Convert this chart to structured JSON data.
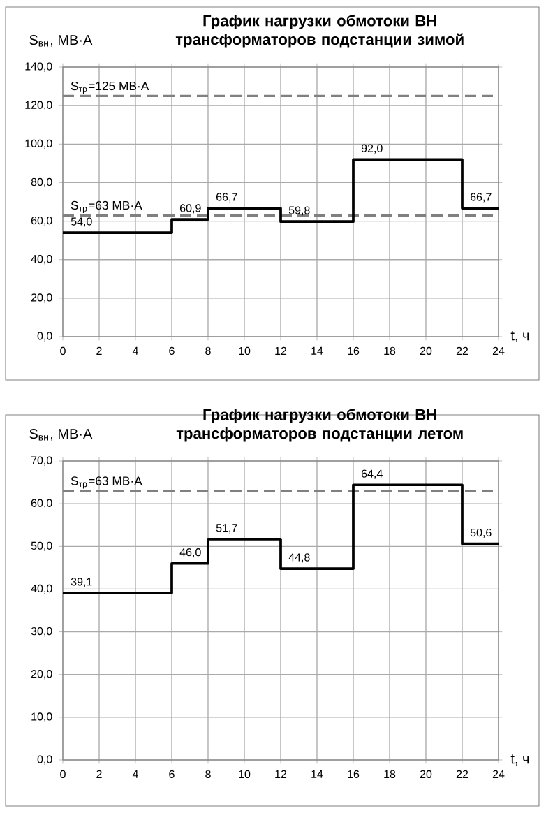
{
  "chart_data": [
    {
      "type": "step",
      "title": "График нагрузки обмотоки ВН трансформаторов подстанции зимой",
      "ylabel": "S$_{вн}$, МВ·А",
      "xlabel": "t, ч",
      "color": "#000000",
      "grid": true,
      "x": [
        0,
        6,
        8,
        12,
        16,
        22,
        24
      ],
      "values": [
        54.0,
        60.9,
        66.7,
        59.8,
        92.0,
        66.7,
        66.7
      ],
      "value_labels": [
        "54,0",
        "60,9",
        "66,7",
        "59,8",
        "92,0",
        "66,7",
        null
      ],
      "xlim": [
        0,
        24
      ],
      "xticks": [
        0,
        2,
        4,
        6,
        8,
        10,
        12,
        14,
        16,
        18,
        20,
        22,
        24
      ],
      "ylim": [
        0,
        140
      ],
      "yticks": [
        {
          "value": 0,
          "label": "0,0"
        },
        {
          "value": 20,
          "label": "20,0"
        },
        {
          "value": 40,
          "label": "40,0"
        },
        {
          "value": 60,
          "label": "60,0"
        },
        {
          "value": 80,
          "label": "80,0"
        },
        {
          "value": 100,
          "label": "100,0"
        },
        {
          "value": 120,
          "label": "120,0"
        },
        {
          "value": 140,
          "label": "140,0"
        }
      ],
      "ref_lines": [
        {
          "axis": "y",
          "value": 125,
          "label": "S$_{тр}$=125 МВ·А",
          "color": "#808080",
          "line_style": "dashed"
        },
        {
          "axis": "y",
          "value": 63,
          "label": "S$_{тр}$=63 МВ·А",
          "color": "#808080",
          "line_style": "dashed"
        }
      ]
    },
    {
      "type": "step",
      "title": "График нагрузки обмотоки ВН трансформаторов подстанции летом",
      "ylabel": "S$_{вн}$, МВ·А",
      "xlabel": "t, ч",
      "color": "#000000",
      "grid": true,
      "x": [
        0,
        6,
        8,
        12,
        16,
        22,
        24
      ],
      "values": [
        39.1,
        46.0,
        51.7,
        44.8,
        64.4,
        50.6,
        50.6
      ],
      "value_labels": [
        "39,1",
        "46,0",
        "51,7",
        "44,8",
        "64,4",
        "50,6",
        null
      ],
      "xlim": [
        0,
        24
      ],
      "xticks": [
        0,
        2,
        4,
        6,
        8,
        10,
        12,
        14,
        16,
        18,
        20,
        22,
        24
      ],
      "ylim": [
        0,
        70
      ],
      "yticks": [
        {
          "value": 0,
          "label": "0,0"
        },
        {
          "value": 10,
          "label": "10,0"
        },
        {
          "value": 20,
          "label": "20,0"
        },
        {
          "value": 30,
          "label": "30,0"
        },
        {
          "value": 40,
          "label": "40,0"
        },
        {
          "value": 50,
          "label": "50,0"
        },
        {
          "value": 60,
          "label": "60,0"
        },
        {
          "value": 70,
          "label": "70,0"
        }
      ],
      "ref_lines": [
        {
          "axis": "y",
          "value": 63,
          "label": "S$_{тр}$=63 МВ·А",
          "color": "#808080",
          "line_style": "dashed"
        }
      ]
    }
  ]
}
